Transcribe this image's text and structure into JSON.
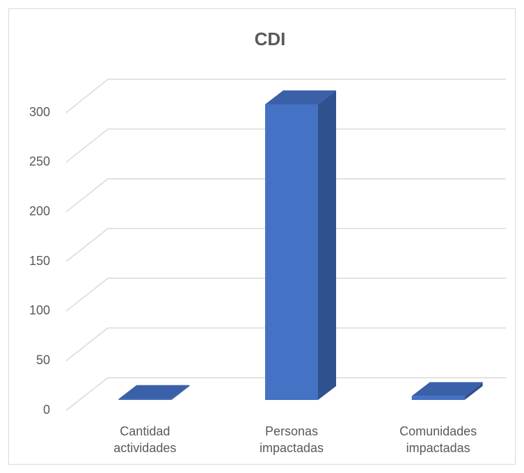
{
  "chart_data": {
    "type": "bar3d",
    "title": "CDI",
    "categories": [
      "Cantidad actividades",
      "Personas impactadas",
      "Comunidades impactadas"
    ],
    "values": [
      1,
      300,
      4
    ],
    "color": "#4472c4",
    "ylim": [
      0,
      300
    ],
    "yticks": [
      0,
      50,
      100,
      150,
      200,
      250,
      300
    ],
    "grid": true
  }
}
